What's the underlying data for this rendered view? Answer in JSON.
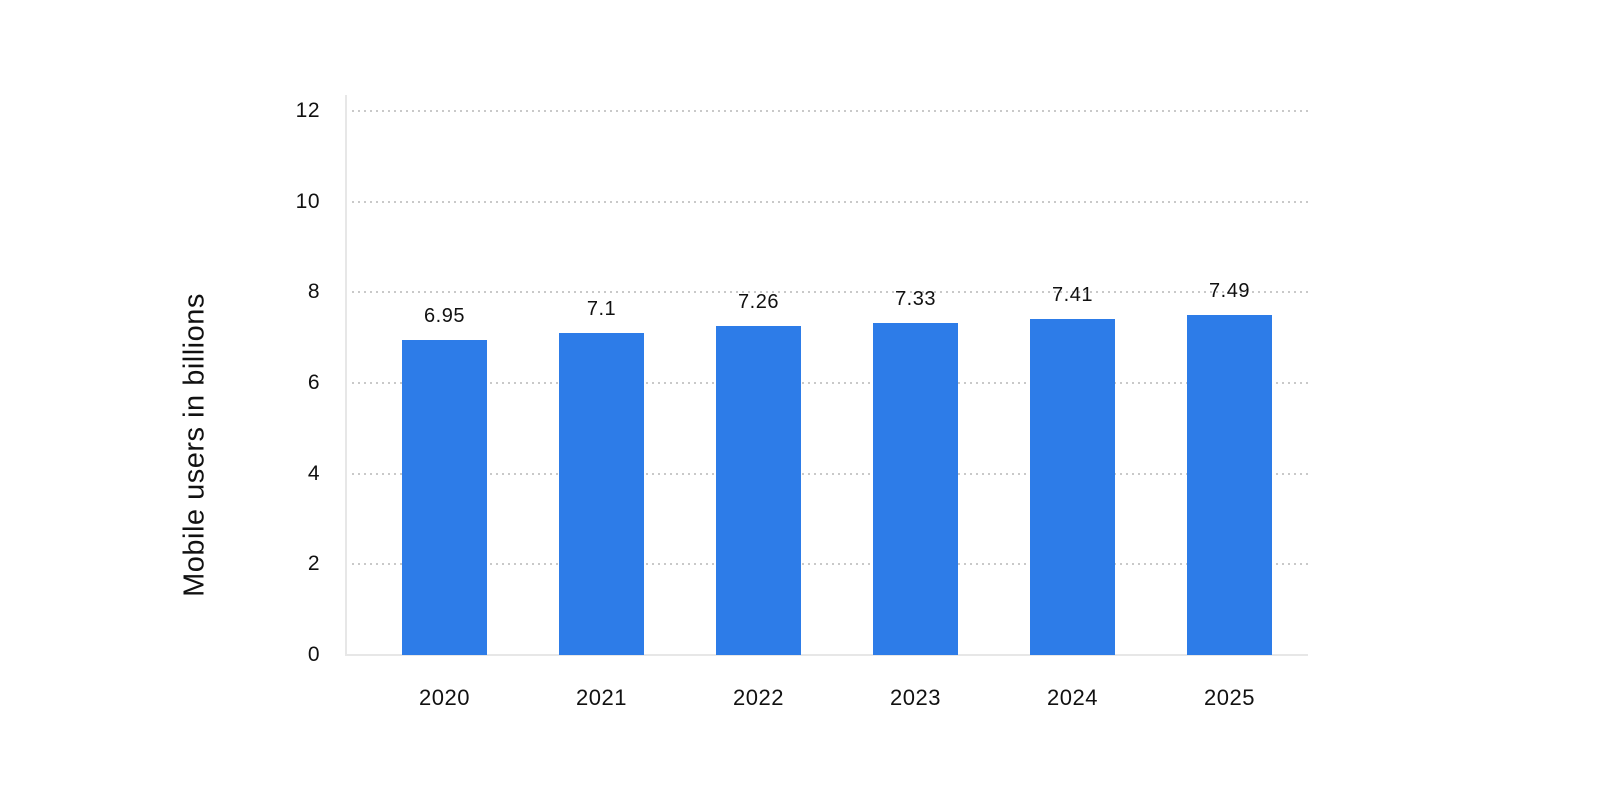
{
  "page": {
    "background": "#ffffff"
  },
  "chart_data": {
    "type": "bar",
    "title": "",
    "xlabel": "",
    "ylabel": "Mobile users in billions",
    "categories": [
      "2020",
      "2021",
      "2022",
      "2023",
      "2024",
      "2025"
    ],
    "values": [
      6.95,
      7.1,
      7.26,
      7.33,
      7.41,
      7.49
    ],
    "value_labels": [
      "6.95",
      "7.1",
      "7.26",
      "7.33",
      "7.41",
      "7.49"
    ],
    "ylim": [
      0,
      12
    ],
    "yticks": [
      0,
      2,
      4,
      6,
      8,
      10,
      12
    ],
    "grid": "horizontal-dotted",
    "legend": "none",
    "colors": {
      "bar": "#2d7ce8",
      "gridline_dots": "#c9c9c9",
      "axis_line": "#e7e7e7",
      "text": "#111111"
    }
  }
}
